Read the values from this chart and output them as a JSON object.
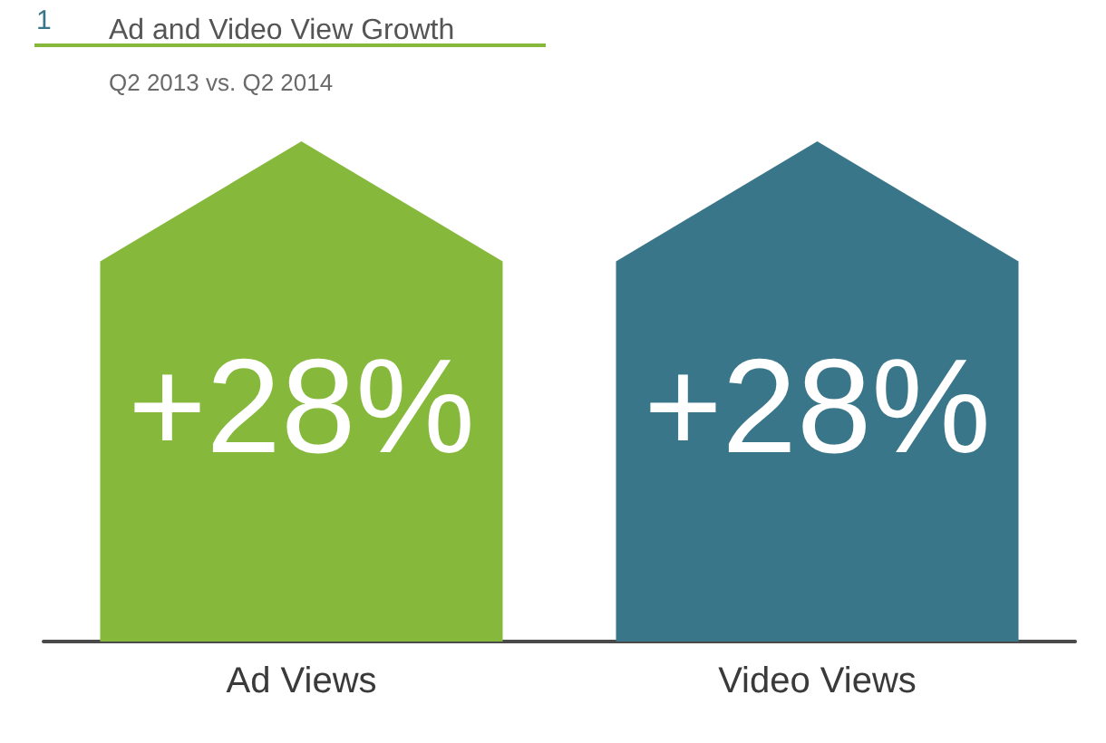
{
  "chart_data": {
    "type": "bar",
    "title": "Ad and Video View Growth",
    "subtitle": "Q2 2013 vs. Q2 2014",
    "annotations": [
      "1"
    ],
    "categories": [
      "Ad Views",
      "Video Views"
    ],
    "values": [
      28,
      28
    ],
    "colors": [
      "#86b93b",
      "#3a7689"
    ],
    "value_labels": [
      "+28%",
      "+28%"
    ],
    "tick_labels": "x"
  }
}
